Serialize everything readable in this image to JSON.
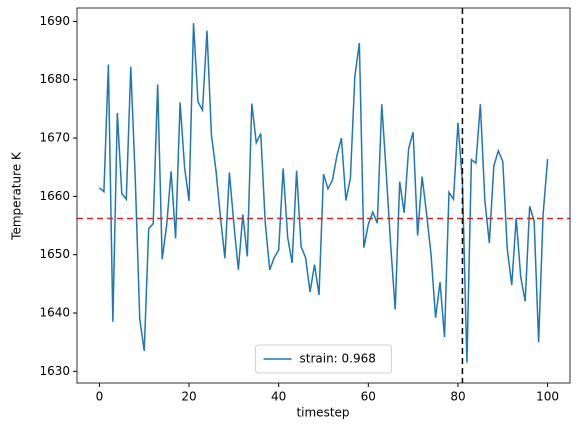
{
  "chart_data": {
    "type": "line",
    "xlabel": "timestep",
    "ylabel": "Temperature K",
    "x": [
      0,
      1,
      2,
      3,
      4,
      5,
      6,
      7,
      8,
      9,
      10,
      11,
      12,
      13,
      14,
      15,
      16,
      17,
      18,
      19,
      20,
      21,
      22,
      23,
      24,
      25,
      26,
      27,
      28,
      29,
      30,
      31,
      32,
      33,
      34,
      35,
      36,
      37,
      38,
      39,
      40,
      41,
      42,
      43,
      44,
      45,
      46,
      47,
      48,
      49,
      50,
      51,
      52,
      53,
      54,
      55,
      56,
      57,
      58,
      59,
      60,
      61,
      62,
      63,
      64,
      65,
      66,
      67,
      68,
      69,
      70,
      71,
      72,
      73,
      74,
      75,
      76,
      77,
      78,
      79,
      80,
      81,
      82,
      83,
      84,
      85,
      86,
      87,
      88,
      89,
      90,
      91,
      92,
      93,
      94,
      95,
      96,
      97,
      98,
      99,
      100
    ],
    "series": [
      {
        "name": "strain: 0.968",
        "color": "#1f77b4",
        "values": [
          1661.5,
          1660.8,
          1682.6,
          1638.5,
          1674.3,
          1660.5,
          1659.5,
          1682.2,
          1663,
          1639,
          1633.5,
          1654.5,
          1655.3,
          1679.2,
          1649.2,
          1655,
          1664.3,
          1652.8,
          1676.1,
          1665,
          1659.2,
          1689.7,
          1676.2,
          1674.8,
          1688.4,
          1670.5,
          1664.5,
          1656.5,
          1649.4,
          1664.1,
          1655.3,
          1647.4,
          1656.9,
          1649.7,
          1675.9,
          1669.2,
          1670.8,
          1655.5,
          1647.4,
          1649.5,
          1650.8,
          1664.8,
          1653,
          1648.6,
          1664.4,
          1651.4,
          1649.5,
          1643.6,
          1648.3,
          1643.1,
          1663.8,
          1661.3,
          1662.8,
          1667,
          1670,
          1659.3,
          1663.1,
          1680.6,
          1686.3,
          1651.2,
          1655.2,
          1657.3,
          1655.4,
          1675.8,
          1664,
          1651.5,
          1640.6,
          1662.5,
          1657.2,
          1668.2,
          1671,
          1653.3,
          1663.4,
          1657,
          1650,
          1639.2,
          1645.3,
          1635.9,
          1660.7,
          1659.5,
          1672.6,
          1662.4,
          1631.5,
          1666.3,
          1665.7,
          1675.8,
          1659.3,
          1652,
          1665.2,
          1667.8,
          1666,
          1651,
          1644.8,
          1656.3,
          1646.2,
          1642,
          1658.3,
          1655.8,
          1635,
          1656.9,
          1666.4
        ]
      }
    ],
    "hline": {
      "value": 1656.2,
      "color": "#d62728"
    },
    "vline": {
      "value": 81,
      "color": "#000000"
    },
    "xlim": [
      -5,
      105
    ],
    "xticks": [
      0,
      20,
      40,
      60,
      80,
      100
    ],
    "ylim": [
      1628,
      1692.3
    ],
    "yticks": [
      1630,
      1640,
      1650,
      1660,
      1670,
      1680,
      1690
    ],
    "legend": "lower center"
  }
}
